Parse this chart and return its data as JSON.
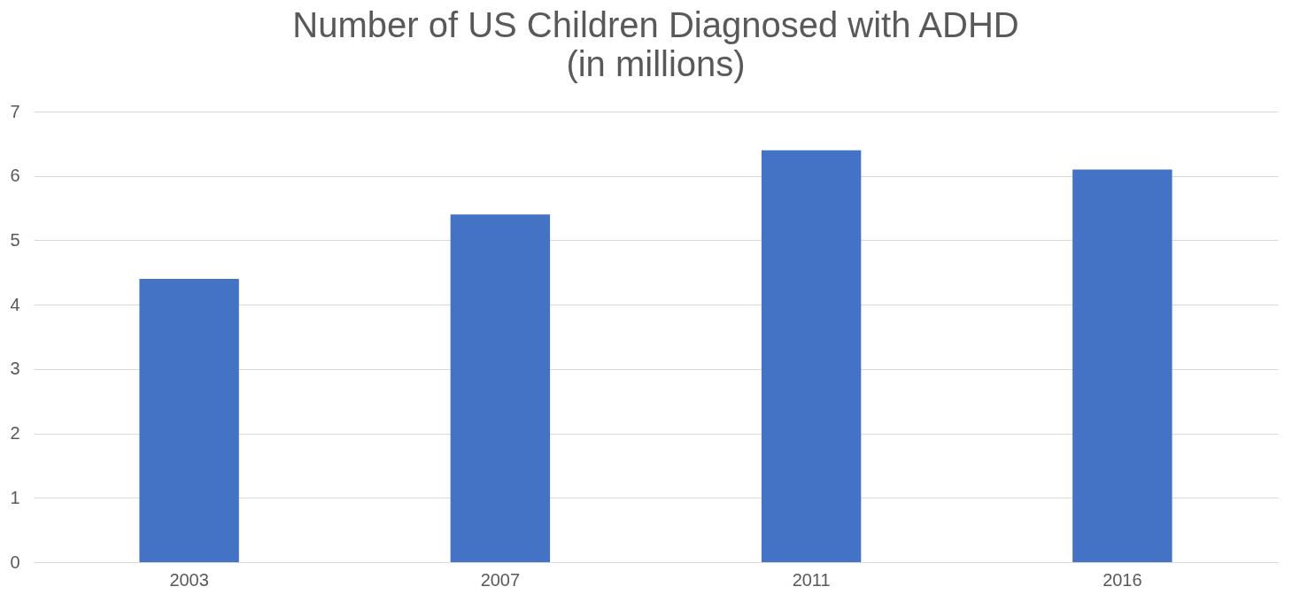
{
  "chart_data": {
    "type": "bar",
    "title": "Number of US Children Diagnosed with ADHD",
    "subtitle": "(in millions)",
    "categories": [
      "2003",
      "2007",
      "2011",
      "2016"
    ],
    "values": [
      4.4,
      5.4,
      6.4,
      6.1
    ],
    "color": "#4472c4",
    "ylim": [
      0,
      7
    ],
    "yticks": [
      0,
      1,
      2,
      3,
      4,
      5,
      6,
      7
    ],
    "grid": "y"
  }
}
